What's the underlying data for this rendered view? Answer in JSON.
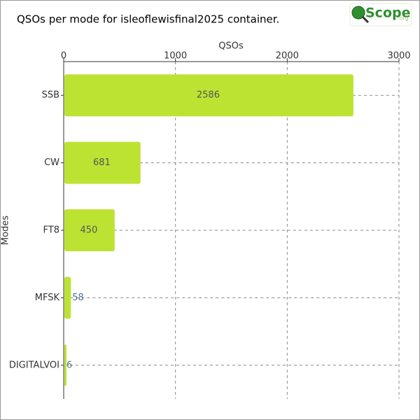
{
  "logo": {
    "text": "Scope",
    "suffix": ".org"
  },
  "chart_data": {
    "type": "hbar",
    "title": "QSOs per mode for isleoflewisfinal2025 container.",
    "x_label": "QSOs",
    "y_label": "Modes",
    "categories": [
      "SSB",
      "CW",
      "FT8",
      "MFSK",
      "DIGITALVOI"
    ],
    "values": [
      2586,
      681,
      450,
      58,
      6
    ],
    "color": "#bde332",
    "xlim": [
      0,
      3000
    ],
    "xticks": [
      0,
      1000,
      2000,
      3000
    ],
    "grid": true
  }
}
